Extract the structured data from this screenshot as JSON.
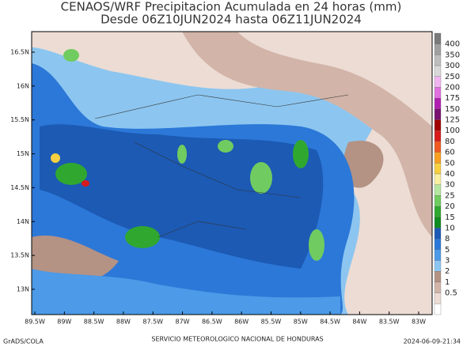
{
  "header": {
    "title": "CENAOS/WRF Precipitacion Acumulada en 24 horas (mm)",
    "subtitle": "Desde 06Z10JUN2024 hasta 06Z11JUN2024"
  },
  "map": {
    "lon_labels": [
      "89.5W",
      "89W",
      "88.5W",
      "88W",
      "87.5W",
      "87W",
      "86.5W",
      "86W",
      "85.5W",
      "85W",
      "84.5W",
      "84W",
      "83.5W",
      "83W"
    ],
    "lat_labels": [
      "16.5N",
      "16N",
      "15.5N",
      "15N",
      "14.5N",
      "14N",
      "13.5N",
      "13N"
    ]
  },
  "colorbar": {
    "levels": [
      400,
      350,
      300,
      250,
      200,
      175,
      150,
      125,
      100,
      80,
      60,
      50,
      40,
      30,
      25,
      20,
      15,
      10,
      8,
      5,
      3,
      2,
      1,
      0.5
    ],
    "colors": [
      "#7a7a7a",
      "#a0a0a0",
      "#bdbdbd",
      "#d8d8d8",
      "#f0b4f0",
      "#e070e0",
      "#b020b0",
      "#7a1070",
      "#a00000",
      "#d81a1a",
      "#f05a20",
      "#f8a020",
      "#f8d040",
      "#f8f0a0",
      "#b4e6a0",
      "#70cc60",
      "#30a830",
      "#108c20",
      "#1c5ab4",
      "#2c78d8",
      "#4c9ae8",
      "#8cc6f0",
      "#b49284",
      "#d2b4a8",
      "#ecdcd4",
      "#ffffff"
    ]
  },
  "footer": {
    "left": "GrADS/COLA",
    "center": "SERVICIO METEOROLOGICO NACIONAL DE HONDURAS",
    "right": "2024-06-09-21:34"
  }
}
